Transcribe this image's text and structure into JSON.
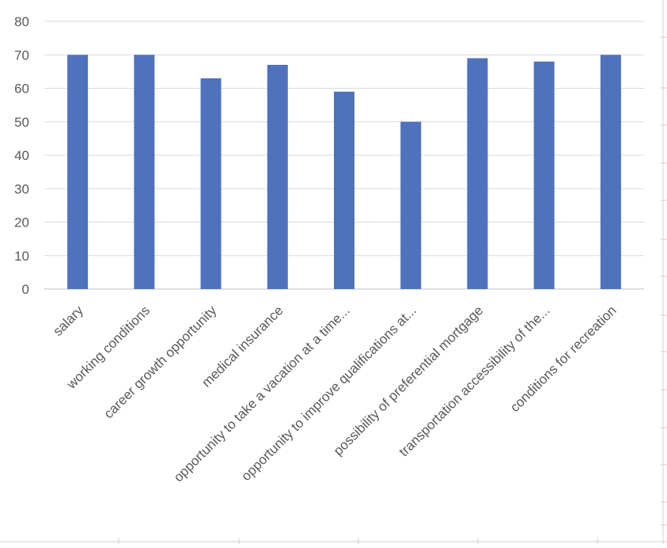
{
  "chart_data": {
    "type": "bar",
    "categories": [
      "salary",
      "working conditions",
      "career growth opportunity",
      "medical insurance",
      "opportunity to take a vacation at a time...",
      "opportunity to improve qualifications at...",
      "possibility of preferential mortgage",
      "transportation accessibility of the...",
      "conditions for recreation"
    ],
    "values": [
      70,
      70,
      63,
      67,
      59,
      50,
      69,
      68,
      70
    ],
    "ylim": [
      0,
      80
    ],
    "yticks": [
      0,
      10,
      20,
      30,
      40,
      50,
      60,
      70,
      80
    ],
    "grid": true,
    "bar_color": "#4f72be",
    "title": "",
    "xlabel": "",
    "ylabel": ""
  }
}
